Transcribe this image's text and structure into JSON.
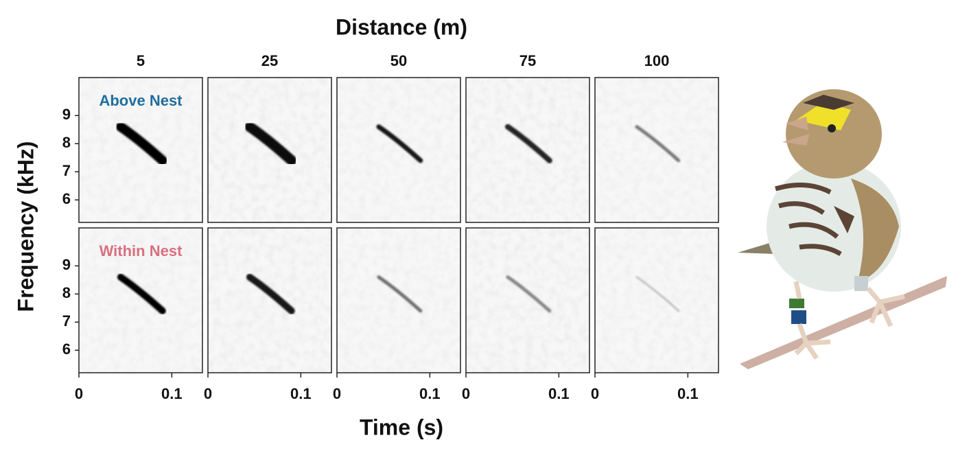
{
  "chart_data": {
    "type": "spectrogram",
    "title": "Distance (m)",
    "xlabel": "Time (s)",
    "ylabel": "Frequency (kHz)",
    "columns": [
      "5",
      "25",
      "50",
      "75",
      "100"
    ],
    "rows": [
      "Above Nest",
      "Within Nest"
    ],
    "row_colors": [
      "#1f6e9c",
      "#d9707f"
    ],
    "xlim": [
      0,
      0.133
    ],
    "xticks": [
      0,
      0.1
    ],
    "ylim": [
      5.2,
      10.35
    ],
    "yticks": [
      6,
      7,
      8,
      9
    ]
  }
}
